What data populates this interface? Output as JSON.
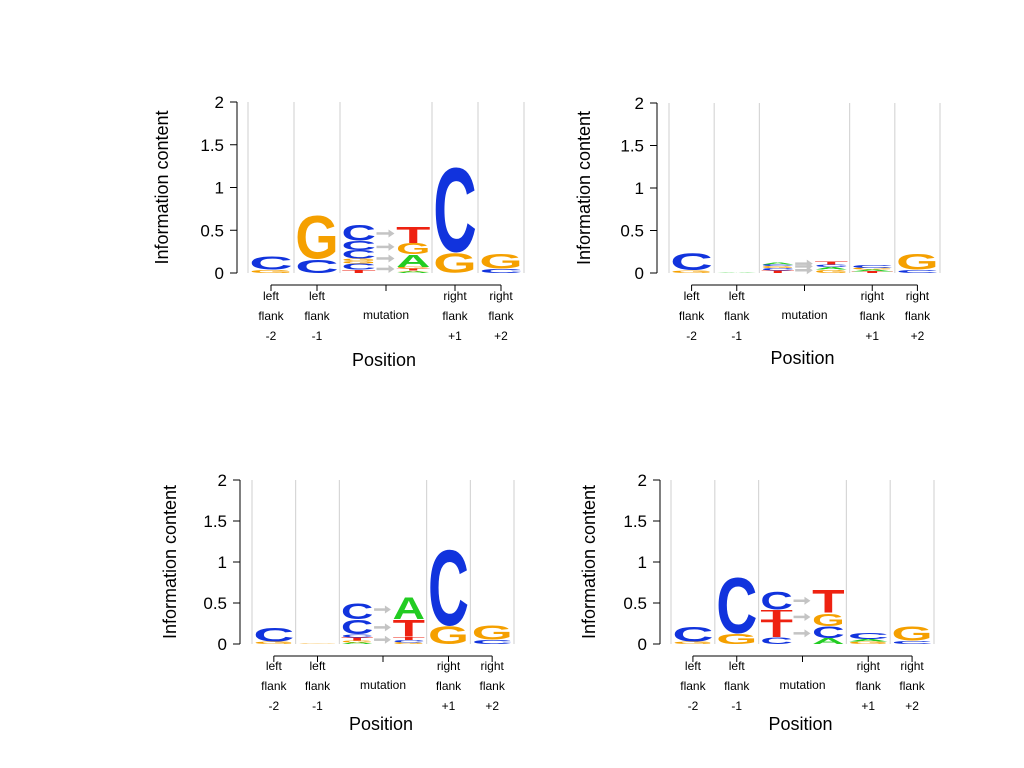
{
  "colors": {
    "A": "#22cc22",
    "C": "#1133dd",
    "G": "#f5a000",
    "T": "#ee2211",
    "gridline": "#cfcfcf",
    "arrow": "#c4c4c4"
  },
  "chart_data": [
    {
      "type": "sequence-logo",
      "ylabel": "Information content",
      "xlabel": "Position",
      "ylim": [
        0,
        2
      ],
      "yticks": [
        "0",
        "0.5",
        "1",
        "1.5",
        "2"
      ],
      "position_labels": [
        [
          "left",
          "flank",
          "-2"
        ],
        [
          "left",
          "flank",
          "-1"
        ],
        [
          "mutation"
        ],
        [
          "right",
          "flank",
          "+1"
        ],
        [
          "right",
          "flank",
          "+2"
        ]
      ],
      "positions": [
        [
          [
            "G",
            0.04
          ],
          [
            "C",
            0.16
          ]
        ],
        [
          [
            "C",
            0.16
          ],
          [
            "G",
            0.52
          ]
        ],
        {
          "mutation": [
            {
              "from": [
                [
                  "T",
                  0.04
                ],
                [
                  "C",
                  0.07
                ],
                [
                  "G",
                  0.03
                ]
              ],
              "to": [
                [
                  "A",
                  0.02
                ],
                [
                  "G",
                  0.01
                ],
                [
                  "T",
                  0.02
                ]
              ]
            },
            {
              "from": [
                [
                  "G",
                  0.03
                ],
                [
                  "C",
                  0.1
                ]
              ],
              "to": [
                [
                  "G",
                  0.02
                ],
                [
                  "A",
                  0.15
                ]
              ]
            },
            {
              "from": [
                [
                  "C",
                  0.11
                ]
              ],
              "to": [
                [
                  "G",
                  0.13
                ]
              ]
            },
            {
              "from": [
                [
                  "C",
                  0.19
                ]
              ],
              "to": [
                [
                  "T",
                  0.2
                ]
              ]
            }
          ]
        },
        [
          [
            "G",
            0.24
          ],
          [
            "C",
            1.02
          ]
        ],
        [
          [
            "C",
            0.05
          ],
          [
            "G",
            0.18
          ]
        ]
      ]
    },
    {
      "type": "sequence-logo",
      "ylabel": "Information content",
      "xlabel": "Position",
      "ylim": [
        0,
        2
      ],
      "yticks": [
        "0",
        "0.5",
        "1",
        "1.5",
        "2"
      ],
      "position_labels": [
        [
          "left",
          "flank",
          "-2"
        ],
        [
          "left",
          "flank",
          "-1"
        ],
        [
          "mutation"
        ],
        [
          "right",
          "flank",
          "+1"
        ],
        [
          "right",
          "flank",
          "+2"
        ]
      ],
      "positions": [
        [
          [
            "G",
            0.03
          ],
          [
            "C",
            0.21
          ]
        ],
        [
          [
            "A",
            0.005
          ]
        ],
        {
          "mutation": [
            {
              "from": [
                [
                  "T",
                  0.03
                ],
                [
                  "C",
                  0.03
                ]
              ],
              "to": [
                [
                  "G",
                  0.04
                ],
                [
                  "A",
                  0.03
                ]
              ]
            },
            {
              "from": [
                [
                  "G",
                  0.02
                ]
              ],
              "to": [
                [
                  "C",
                  0.03
                ]
              ]
            },
            {
              "from": [
                [
                  "C",
                  0.02
                ],
                [
                  "A",
                  0.02
                ]
              ],
              "to": [
                [
                  "T",
                  0.04
                ]
              ]
            }
          ]
        },
        [
          [
            "T",
            0.02
          ],
          [
            "A",
            0.02
          ],
          [
            "G",
            0.02
          ],
          [
            "C",
            0.04
          ]
        ],
        [
          [
            "C",
            0.04
          ],
          [
            "G",
            0.19
          ]
        ]
      ]
    },
    {
      "type": "sequence-logo",
      "ylabel": "Information content",
      "xlabel": "Position",
      "ylim": [
        0,
        2
      ],
      "yticks": [
        "0",
        "0.5",
        "1",
        "1.5",
        "2"
      ],
      "position_labels": [
        [
          "left",
          "flank",
          "-2"
        ],
        [
          "left",
          "flank",
          "-1"
        ],
        [
          "mutation"
        ],
        [
          "right",
          "flank",
          "+1"
        ],
        [
          "right",
          "flank",
          "+2"
        ]
      ],
      "positions": [
        [
          [
            "G",
            0.03
          ],
          [
            "C",
            0.17
          ]
        ],
        [
          [
            "G",
            0.005
          ]
        ],
        {
          "mutation": [
            {
              "from": [
                [
                  "A",
                  0.02
                ],
                [
                  "G",
                  0.02
                ],
                [
                  "T",
                  0.04
                ],
                [
                  "C",
                  0.04
                ]
              ],
              "to": [
                [
                  "G",
                  0.02
                ],
                [
                  "C",
                  0.03
                ],
                [
                  "T",
                  0.04
                ]
              ]
            },
            {
              "from": [
                [
                  "C",
                  0.18
                ]
              ],
              "to": [
                [
                  "T",
                  0.21
                ]
              ]
            },
            {
              "from": [
                [
                  "C",
                  0.2
                ]
              ],
              "to": [
                [
                  "A",
                  0.28
                ]
              ]
            }
          ]
        },
        [
          [
            "G",
            0.22
          ],
          [
            "C",
            0.96
          ]
        ],
        [
          [
            "C",
            0.05
          ],
          [
            "G",
            0.18
          ]
        ]
      ]
    },
    {
      "type": "sequence-logo",
      "ylabel": "Information content",
      "xlabel": "Position",
      "ylim": [
        0,
        2
      ],
      "yticks": [
        "0",
        "0.5",
        "1",
        "1.5",
        "2"
      ],
      "position_labels": [
        [
          "left",
          "flank",
          "-2"
        ],
        [
          "left",
          "flank",
          "-1"
        ],
        [
          "mutation"
        ],
        [
          "right",
          "flank",
          "+1"
        ],
        [
          "right",
          "flank",
          "+2"
        ]
      ],
      "positions": [
        [
          [
            "G",
            0.03
          ],
          [
            "C",
            0.19
          ]
        ],
        [
          [
            "G",
            0.13
          ],
          [
            "C",
            0.7
          ]
        ],
        {
          "mutation": [
            {
              "from": [
                [
                  "C",
                  0.08
                ],
                [
                  "T",
                  0.22
                ]
              ],
              "to": [
                [
                  "A",
                  0.07
                ],
                [
                  "C",
                  0.15
                ]
              ]
            },
            {
              "from": [
                [
                  "T",
                  0.12
                ]
              ],
              "to": [
                [
                  "G",
                  0.16
                ]
              ]
            },
            {
              "from": [
                [
                  "C",
                  0.22
                ]
              ],
              "to": [
                [
                  "T",
                  0.29
                ]
              ]
            }
          ]
        },
        [
          [
            "G",
            0.03
          ],
          [
            "A",
            0.03
          ],
          [
            "C",
            0.07
          ]
        ],
        [
          [
            "C",
            0.04
          ],
          [
            "G",
            0.18
          ]
        ]
      ]
    }
  ]
}
